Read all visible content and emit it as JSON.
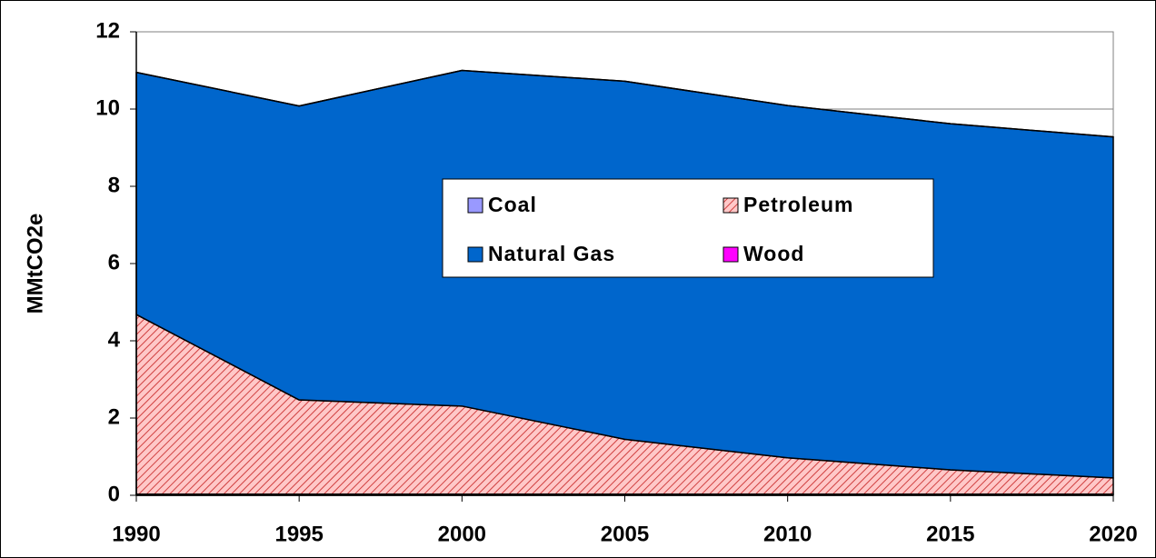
{
  "chart_data": {
    "type": "stacked_area",
    "y_label": "MMtCO2e",
    "x": [
      1990,
      1995,
      2000,
      2005,
      2010,
      2015,
      2020
    ],
    "series": [
      {
        "name": "Coal",
        "color": "#9999ff",
        "values": [
          0.03,
          0.03,
          0.03,
          0.03,
          0.03,
          0.03,
          0.03
        ]
      },
      {
        "name": "Petroleum",
        "color": "#ff9999",
        "pattern": "hatch",
        "values": [
          4.65,
          2.44,
          2.28,
          1.42,
          0.94,
          0.63,
          0.42
        ]
      },
      {
        "name": "Natural Gas",
        "color": "#0066cc",
        "values": [
          6.27,
          7.61,
          8.69,
          9.27,
          9.12,
          8.96,
          8.83
        ]
      },
      {
        "name": "Wood",
        "color": "#ff00ff",
        "values": [
          0,
          0,
          0,
          0,
          0,
          0,
          0
        ]
      }
    ],
    "xlim": [
      1990,
      2020
    ],
    "xticks": [
      1990,
      1995,
      2000,
      2005,
      2010,
      2015,
      2020
    ],
    "ylim": [
      0,
      12
    ],
    "yticks": [
      0,
      2,
      4,
      6,
      8,
      10,
      12
    ],
    "grid": true,
    "legend": "center"
  }
}
